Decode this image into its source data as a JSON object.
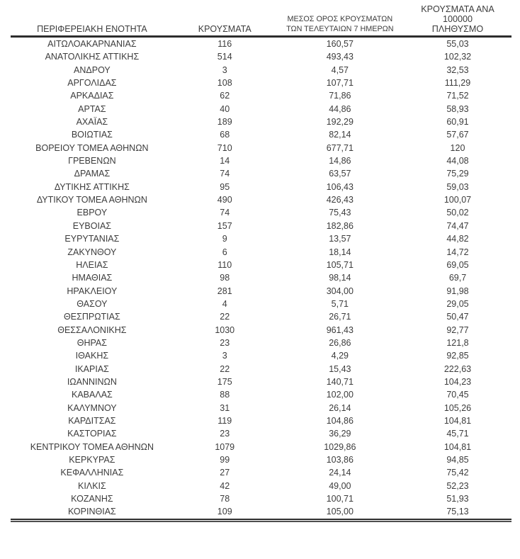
{
  "table": {
    "columns": [
      {
        "id": "region",
        "label_lines": [
          "ΠΕΡΙΦΕΡΕΙΑΚΗ ΕΝΟΤΗΤΑ"
        ]
      },
      {
        "id": "cases",
        "label_lines": [
          "ΚΡΟΥΣΜΑΤΑ"
        ]
      },
      {
        "id": "avg7",
        "label_lines": [
          "ΜΕΣΟΣ ΟΡΟΣ ΚΡΟΥΣΜΑΤΩΝ",
          "ΤΩΝ ΤΕΛΕΥΤΑΙΩΝ 7 ΗΜΕΡΩΝ"
        ]
      },
      {
        "id": "per100k",
        "label_lines": [
          "ΚΡΟΥΣΜΑΤΑ ΑΝΑ 100000",
          "ΠΛΗΘΥΣΜΟ"
        ]
      }
    ],
    "rows": [
      [
        "ΑΙΤΩΛΟΑΚΑΡΝΑΝΙΑΣ",
        "116",
        "160,57",
        "55,03"
      ],
      [
        "ΑΝΑΤΟΛΙΚΗΣ ΑΤΤΙΚΗΣ",
        "514",
        "493,43",
        "102,32"
      ],
      [
        "ΑΝΔΡΟΥ",
        "3",
        "4,57",
        "32,53"
      ],
      [
        "ΑΡΓΟΛΙΔΑΣ",
        "108",
        "107,71",
        "111,29"
      ],
      [
        "ΑΡΚΑΔΙΑΣ",
        "62",
        "71,86",
        "71,52"
      ],
      [
        "ΑΡΤΑΣ",
        "40",
        "44,86",
        "58,93"
      ],
      [
        "ΑΧΑΪΑΣ",
        "189",
        "192,29",
        "60,91"
      ],
      [
        "ΒΟΙΩΤΙΑΣ",
        "68",
        "82,14",
        "57,67"
      ],
      [
        "ΒΟΡΕΙΟΥ ΤΟΜΕΑ ΑΘΗΝΩΝ",
        "710",
        "677,71",
        "120"
      ],
      [
        "ΓΡΕΒΕΝΩΝ",
        "14",
        "14,86",
        "44,08"
      ],
      [
        "ΔΡΑΜΑΣ",
        "74",
        "63,57",
        "75,29"
      ],
      [
        "ΔΥΤΙΚΗΣ ΑΤΤΙΚΗΣ",
        "95",
        "106,43",
        "59,03"
      ],
      [
        "ΔΥΤΙΚΟΥ ΤΟΜΕΑ ΑΘΗΝΩΝ",
        "490",
        "426,43",
        "100,07"
      ],
      [
        "ΕΒΡΟΥ",
        "74",
        "75,43",
        "50,02"
      ],
      [
        "ΕΥΒΟΙΑΣ",
        "157",
        "182,86",
        "74,47"
      ],
      [
        "ΕΥΡΥΤΑΝΙΑΣ",
        "9",
        "13,57",
        "44,82"
      ],
      [
        "ΖΑΚΥΝΘΟΥ",
        "6",
        "18,14",
        "14,72"
      ],
      [
        "ΗΛΕΙΑΣ",
        "110",
        "105,71",
        "69,05"
      ],
      [
        "ΗΜΑΘΙΑΣ",
        "98",
        "98,14",
        "69,7"
      ],
      [
        "ΗΡΑΚΛΕΙΟΥ",
        "281",
        "304,00",
        "91,98"
      ],
      [
        "ΘΑΣΟΥ",
        "4",
        "5,71",
        "29,05"
      ],
      [
        "ΘΕΣΠΡΩΤΙΑΣ",
        "22",
        "26,71",
        "50,47"
      ],
      [
        "ΘΕΣΣΑΛΟΝΙΚΗΣ",
        "1030",
        "961,43",
        "92,77"
      ],
      [
        "ΘΗΡΑΣ",
        "23",
        "26,86",
        "121,8"
      ],
      [
        "ΙΘΑΚΗΣ",
        "3",
        "4,29",
        "92,85"
      ],
      [
        "ΙΚΑΡΙΑΣ",
        "22",
        "15,43",
        "222,63"
      ],
      [
        "ΙΩΑΝΝΙΝΩΝ",
        "175",
        "140,71",
        "104,23"
      ],
      [
        "ΚΑΒΑΛΑΣ",
        "88",
        "102,00",
        "70,45"
      ],
      [
        "ΚΑΛΥΜΝΟΥ",
        "31",
        "26,14",
        "105,26"
      ],
      [
        "ΚΑΡΔΙΤΣΑΣ",
        "119",
        "104,86",
        "104,81"
      ],
      [
        "ΚΑΣΤΟΡΙΑΣ",
        "23",
        "36,29",
        "45,71"
      ],
      [
        "ΚΕΝΤΡΙΚΟΥ ΤΟΜΕΑ ΑΘΗΝΩΝ",
        "1079",
        "1029,86",
        "104,81"
      ],
      [
        "ΚΕΡΚΥΡΑΣ",
        "99",
        "103,86",
        "94,85"
      ],
      [
        "ΚΕΦΑΛΛΗΝΙΑΣ",
        "27",
        "24,14",
        "75,42"
      ],
      [
        "ΚΙΛΚΙΣ",
        "42",
        "49,00",
        "52,23"
      ],
      [
        "ΚΟΖΑΝΗΣ",
        "78",
        "100,71",
        "51,93"
      ],
      [
        "ΚΟΡΙΝΘΙΑΣ",
        "109",
        "105,00",
        "75,13"
      ]
    ],
    "colors": {
      "text": "#3c3c3c",
      "rule_dark": "#2d2d2d",
      "rule_light": "#4f4f4f",
      "background": "#ffffff"
    }
  }
}
